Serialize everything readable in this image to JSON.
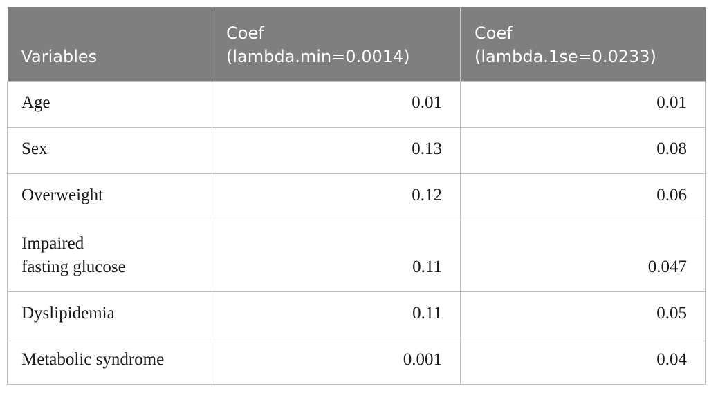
{
  "table": {
    "headers": [
      {
        "lines": [
          "Variables"
        ]
      },
      {
        "lines": [
          "Coef",
          "(lambda.min=0.0014)"
        ]
      },
      {
        "lines": [
          "Coef",
          "(lambda.1se=0.0233)"
        ]
      }
    ],
    "rows": [
      {
        "variable": [
          "Age"
        ],
        "coef_min": "0.01",
        "coef_1se": "0.01"
      },
      {
        "variable": [
          "Sex"
        ],
        "coef_min": "0.13",
        "coef_1se": "0.08"
      },
      {
        "variable": [
          "Overweight"
        ],
        "coef_min": "0.12",
        "coef_1se": "0.06"
      },
      {
        "variable": [
          "Impaired",
          "fasting glucose"
        ],
        "coef_min": "0.11",
        "coef_1se": "0.047"
      },
      {
        "variable": [
          "Dyslipidemia"
        ],
        "coef_min": "0.11",
        "coef_1se": "0.05"
      },
      {
        "variable": [
          "Metabolic syndrome"
        ],
        "coef_min": "0.001",
        "coef_1se": "0.04"
      }
    ]
  },
  "colors": {
    "header_background": "#7f7f7f",
    "header_text": "#ffffff",
    "grid_lines": "#bdbdbd"
  }
}
